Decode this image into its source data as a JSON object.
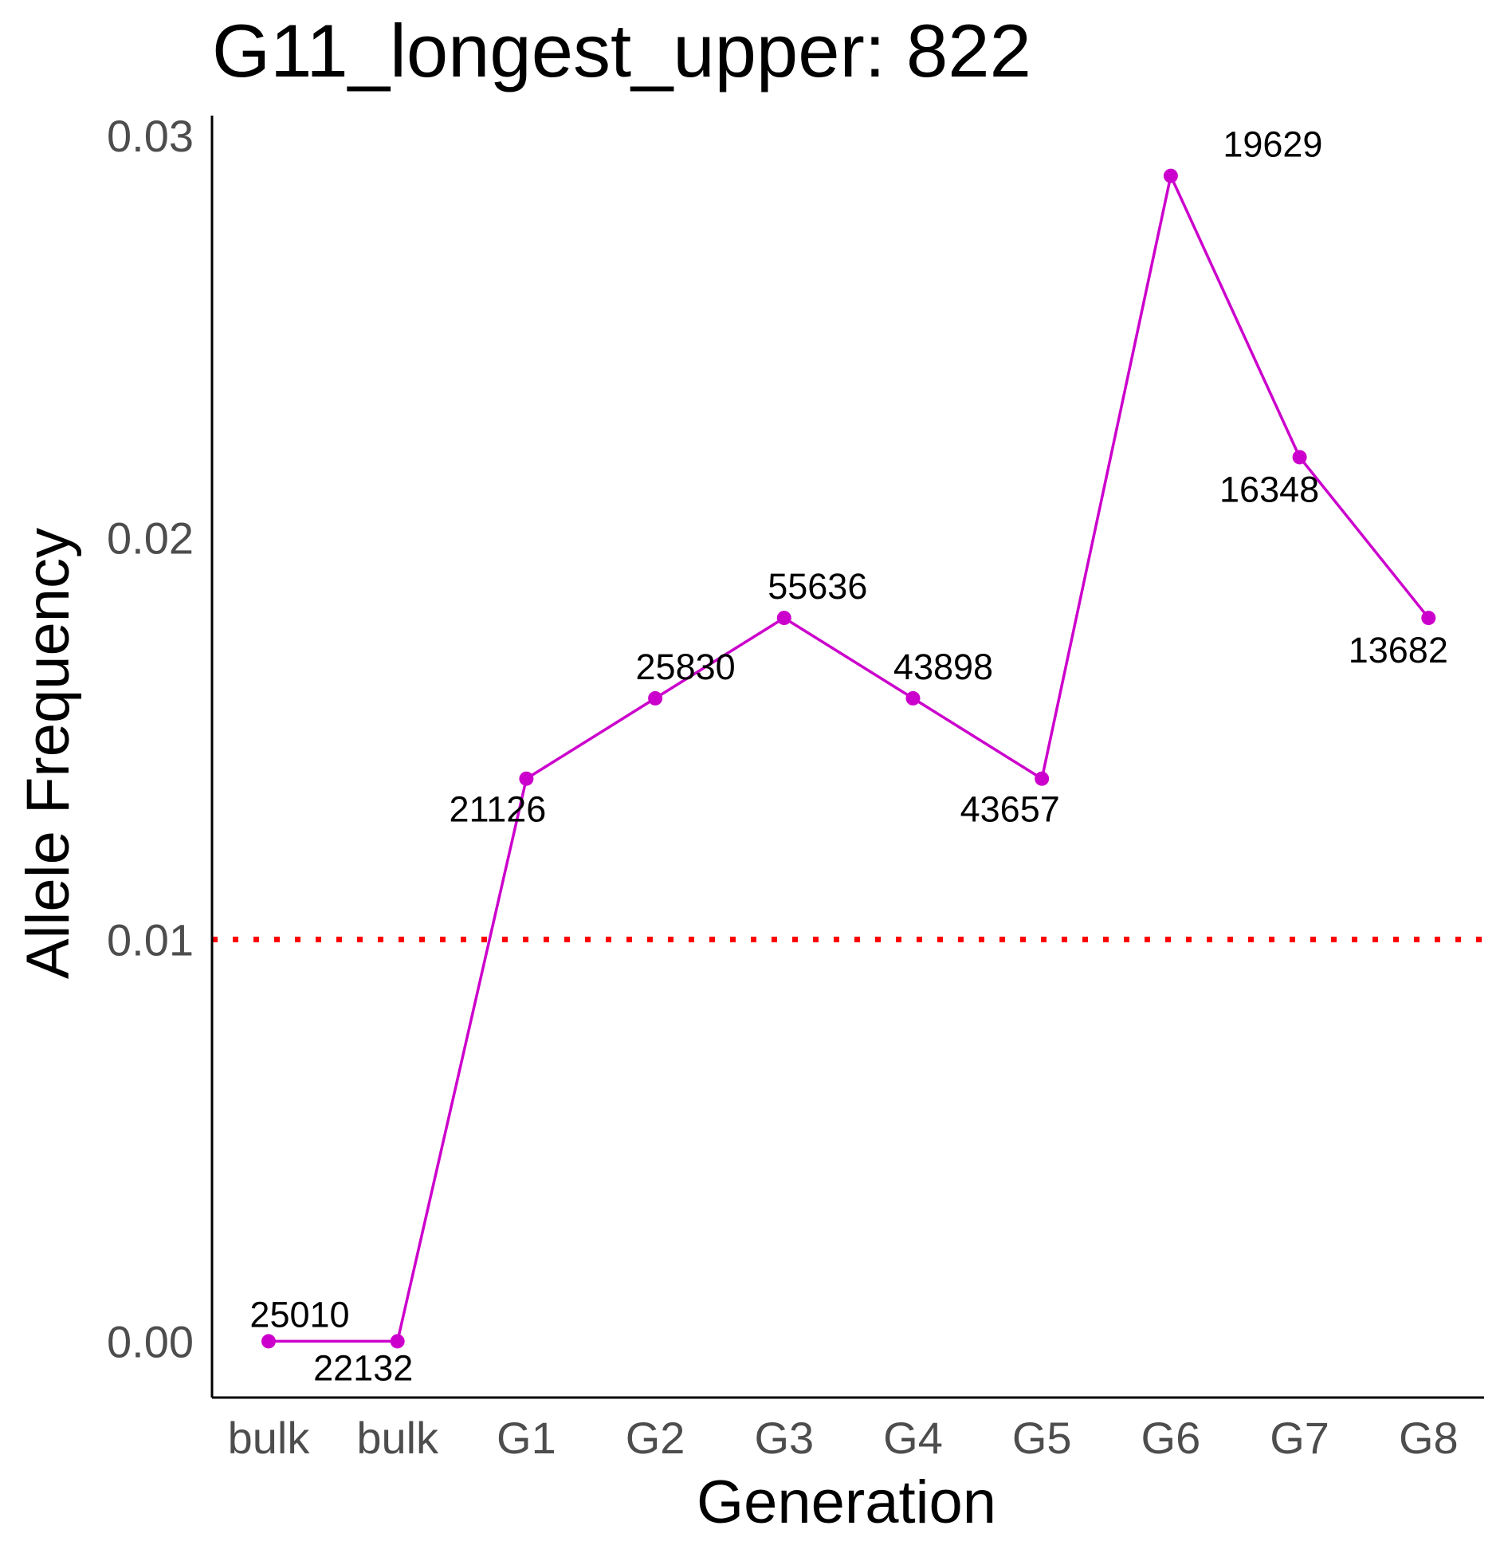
{
  "chart_data": {
    "type": "line",
    "title": "G11_longest_upper: 822",
    "xlabel": "Generation",
    "ylabel": "Allele Frequency",
    "categories": [
      "bulk",
      "bulk",
      "G1",
      "G2",
      "G3",
      "G4",
      "G5",
      "G6",
      "G7",
      "G8"
    ],
    "values": [
      0.0,
      0.0,
      0.014,
      0.016,
      0.018,
      0.016,
      0.014,
      0.029,
      0.022,
      0.018
    ],
    "point_labels": [
      "25010",
      "22132",
      "21126",
      "25830",
      "55636",
      "43898",
      "43657",
      "19629",
      "16348",
      "13682"
    ],
    "y_ticks": [
      "0.00",
      "0.01",
      "0.02",
      "0.03"
    ],
    "y_tick_values": [
      0.0,
      0.01,
      0.02,
      0.03
    ],
    "ylim": [
      -0.0014,
      0.0305
    ],
    "threshold": 0.01,
    "grid": false,
    "legend": "none",
    "colors": {
      "line": "#CC00CC",
      "threshold": "#FF0000",
      "axis": "#000000"
    }
  }
}
